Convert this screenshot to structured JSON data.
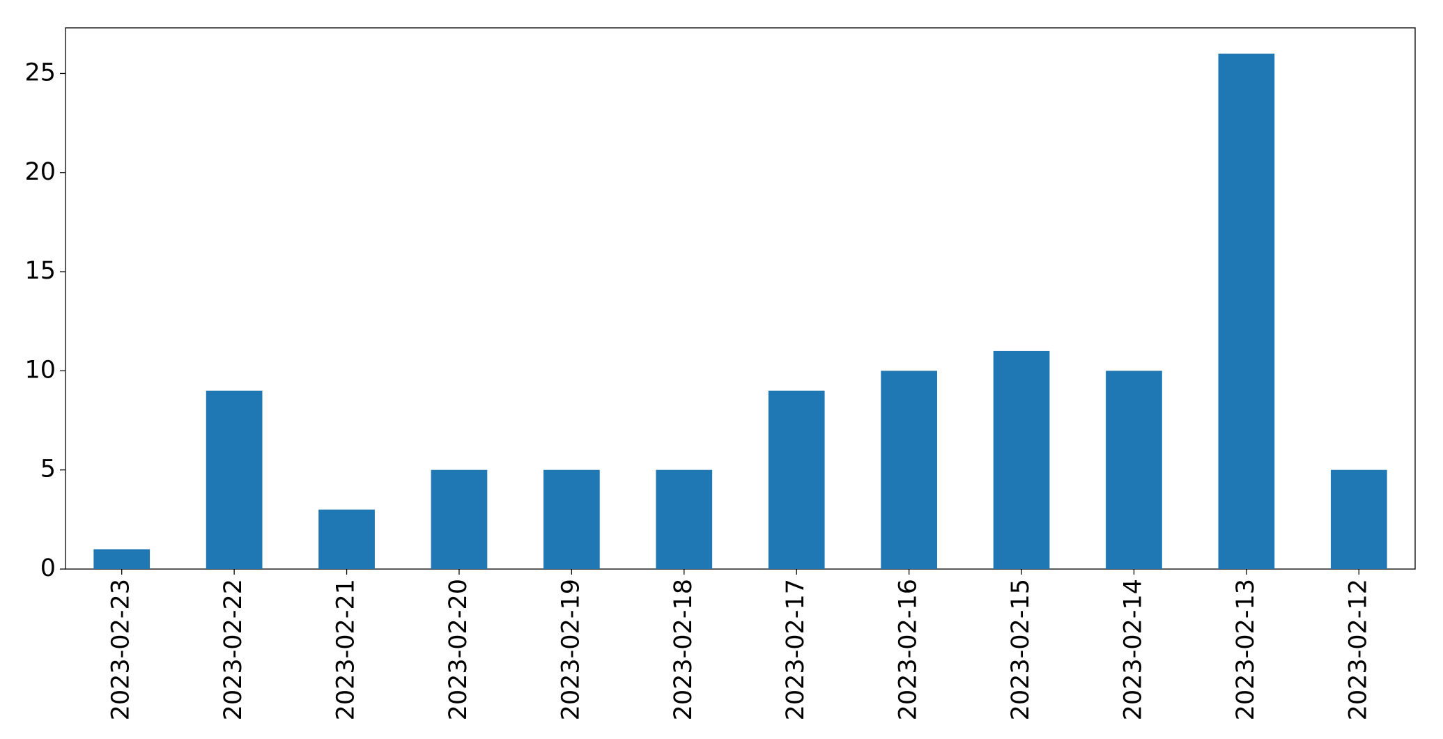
{
  "chart_data": {
    "type": "bar",
    "categories": [
      "2023-02-23",
      "2023-02-22",
      "2023-02-21",
      "2023-02-20",
      "2023-02-19",
      "2023-02-18",
      "2023-02-17",
      "2023-02-16",
      "2023-02-15",
      "2023-02-14",
      "2023-02-13",
      "2023-02-12"
    ],
    "values": [
      1,
      9,
      3,
      5,
      5,
      5,
      9,
      10,
      11,
      10,
      26,
      5
    ],
    "color": "#1f77b4",
    "ylim": [
      0,
      27.3
    ],
    "yticks": [
      0,
      5,
      10,
      15,
      20,
      25
    ],
    "grid": false
  }
}
